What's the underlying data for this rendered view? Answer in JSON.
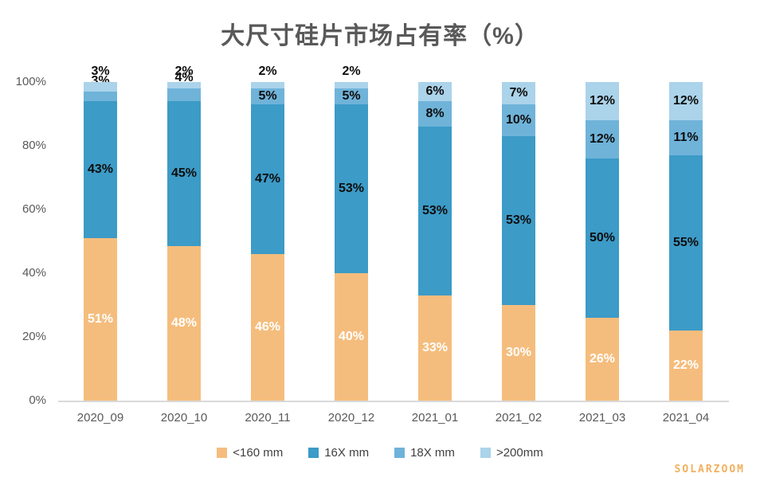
{
  "title": "大尺寸硅片市场占有率（%）",
  "watermark": "SOLARZOOM",
  "colors": {
    "title_text": "#595959",
    "axis_text": "#595959",
    "axis_line": "#D9D9D9",
    "legend_text": "#404040",
    "watermark_text": "#F2B05E"
  },
  "chart_data": {
    "type": "bar",
    "stacked": true,
    "title": "大尺寸硅片市场占有率（%）",
    "categories": [
      "2020_09",
      "2020_10",
      "2020_11",
      "2020_12",
      "2021_01",
      "2021_02",
      "2021_03",
      "2021_04"
    ],
    "series": [
      {
        "name": "<160 mm",
        "color": "#F5BD7D",
        "label_color": "#FFFFFF",
        "values": [
          51,
          48,
          46,
          40,
          33,
          30,
          26,
          22
        ]
      },
      {
        "name": "16X mm",
        "color": "#3C9BC7",
        "label_color": "#0D0D0D",
        "values": [
          43,
          45,
          47,
          53,
          53,
          53,
          50,
          55
        ]
      },
      {
        "name": "18X mm",
        "color": "#6FB3D9",
        "label_color": "#0D0D0D",
        "values": [
          3,
          4,
          5,
          5,
          8,
          10,
          12,
          11
        ]
      },
      {
        "name": ">200mm",
        "color": "#ABD3EA",
        "label_color": "#0D0D0D",
        "values": [
          3,
          2,
          2,
          2,
          6,
          7,
          12,
          12
        ]
      }
    ],
    "data_label_suffix": "%",
    "y_ticks": [
      "0%",
      "20%",
      "40%",
      "60%",
      "80%",
      "100%"
    ],
    "ylim": [
      0,
      100
    ],
    "grid": false,
    "legend_position": "bottom"
  }
}
